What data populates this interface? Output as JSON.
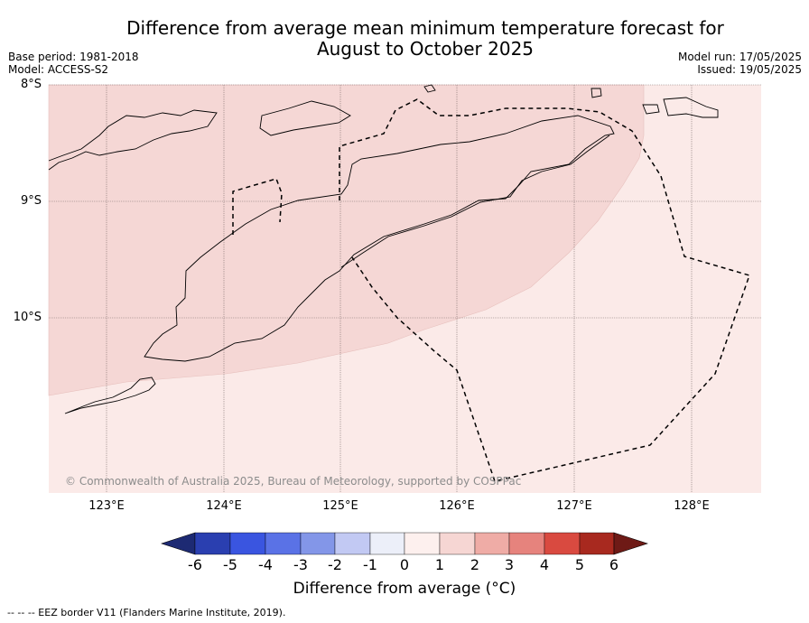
{
  "title_line1": "Difference from average mean minimum temperature forecast for",
  "title_line2": "August to October 2025",
  "base_period": "Base period: 1981-2018",
  "model": "Model: ACCESS-S2",
  "model_run": "Model run: 17/05/2025",
  "issued": "Issued: 19/05/2025",
  "lat_labels": [
    "8°S",
    "9°S",
    "10°S"
  ],
  "lon_labels": [
    "123°E",
    "124°E",
    "125°E",
    "126°E",
    "127°E",
    "128°E"
  ],
  "copyright": "© Commonwealth of Australia 2025, Bureau of Meteorology, supported by COSPPac",
  "colorbar": {
    "label": "Difference from average (°C)",
    "ticks": [
      "-6",
      "-5",
      "-4",
      "-3",
      "-2",
      "-1",
      "0",
      "1",
      "2",
      "3",
      "4",
      "5",
      "6"
    ],
    "colors": [
      "#1d2a73",
      "#2a3fb0",
      "#3a55e0",
      "#5a72e6",
      "#8396e8",
      "#c2c9f3",
      "#eceff9",
      "#fdf0ee",
      "#f6d6d3",
      "#efaca6",
      "#e6837d",
      "#d94a40",
      "#a8291f",
      "#6e1a16"
    ]
  },
  "map_regions": {
    "north_west_zone": "1 to 2",
    "south_east_zone": "0 to 1"
  },
  "footnote": "-- -- -- EEZ border V11 (Flanders Marine Institute, 2019)."
}
